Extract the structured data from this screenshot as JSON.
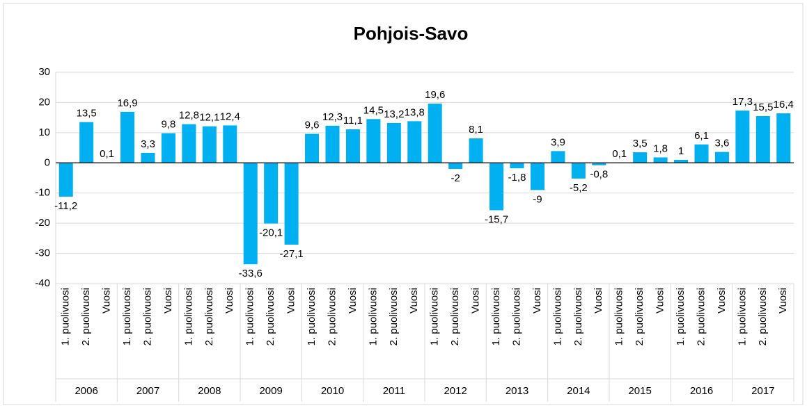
{
  "chart_data": {
    "type": "bar",
    "title": "Pohjois-Savo",
    "categories": [
      "1. puolivuosi",
      "2. puolivuosi",
      "Vuosi",
      "1. puolivuosi",
      "2. puolivuosi",
      "Vuosi",
      "1. puolivuosi",
      "2. puolivuosi",
      "Vuosi",
      "1. puolivuosi",
      "2. puolivuosi",
      "Vuosi",
      "1. puolivuosi",
      "2. puolivuosi",
      "Vuosi",
      "1. puolivuosi",
      "2. puolivuosi",
      "Vuosi",
      "1. puolivuosi",
      "2. puolivuosi",
      "Vuosi",
      "1. puolivuosi",
      "2. puolivuosi",
      "Vuosi",
      "1. puolivuosi",
      "2. puolivuosi",
      "Vuosi",
      "1. puolivuosi",
      "2. puolivuosi",
      "Vuosi",
      "1. puolivuosi",
      "2. puolivuosi",
      "Vuosi",
      "1. puolivuosi",
      "2. puolivuosi",
      "Vuosi"
    ],
    "groups": [
      "2006",
      "2007",
      "2008",
      "2009",
      "2010",
      "2011",
      "2012",
      "2013",
      "2014",
      "2015",
      "2016",
      "2017"
    ],
    "values": [
      -11.2,
      13.5,
      0.1,
      16.9,
      3.3,
      9.8,
      12.8,
      12.1,
      12.4,
      -33.6,
      -20.1,
      -27.1,
      9.6,
      12.3,
      11.1,
      14.5,
      13.2,
      13.8,
      19.6,
      -2,
      8.1,
      -15.7,
      -1.8,
      -9,
      3.9,
      -5.2,
      -0.8,
      0.1,
      3.5,
      1.8,
      1,
      6.1,
      3.6,
      17.3,
      15.5,
      16.4
    ],
    "value_labels": [
      "-11,2",
      "13,5",
      "0,1",
      "16,9",
      "3,3",
      "9,8",
      "12,8",
      "12,1",
      "12,4",
      "-33,6",
      "-20,1",
      "-27,1",
      "9,6",
      "12,3",
      "11,1",
      "14,5",
      "13,2",
      "13,8",
      "19,6",
      "-2",
      "8,1",
      "-15,7",
      "-1,8",
      "-9",
      "3,9",
      "-5,2",
      "-0,8",
      "0,1",
      "3,5",
      "1,8",
      "1",
      "6,1",
      "3,6",
      "17,3",
      "15,5",
      "16,4"
    ],
    "color": "#00b0f0",
    "ylim": [
      -40,
      30
    ],
    "yticks": [
      -40,
      -30,
      -20,
      -10,
      0,
      10,
      20,
      30
    ],
    "grid": true
  }
}
